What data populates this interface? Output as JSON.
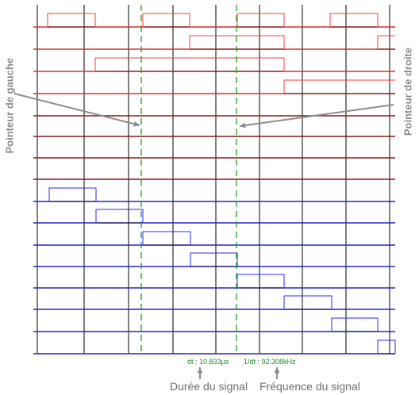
{
  "colors": {
    "background": "#ffffff",
    "grid": "#000000",
    "top_channel": "#8b1a1a",
    "top_trace": "#ff3b3b",
    "bottom_channel": "#1a1a6e",
    "bottom_trace": "#2a2aff",
    "cursor": "#1e9e1e",
    "annotation": "#8c8c8c",
    "readout": "#1e8c1e"
  },
  "labels": {
    "left_pointer": "Pointeur de gauche",
    "right_pointer": "Pointeur de droite",
    "duration_caption": "Durée du signal",
    "frequency_caption": "Fréquence du signal"
  },
  "readouts": {
    "dt": "dt : 10.833µs",
    "inverse_dt": "1/dt : 92.308kHz"
  },
  "icons": {
    "left_arrow": "arrow-down-right-icon",
    "right_arrow": "arrow-left-icon",
    "duration_arrow": "arrow-up-icon",
    "frequency_arrow": "arrow-up-icon"
  }
}
